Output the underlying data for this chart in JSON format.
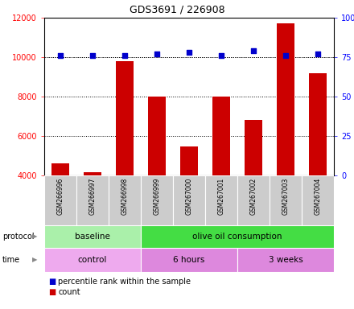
{
  "title": "GDS3691 / 226908",
  "samples": [
    "GSM266996",
    "GSM266997",
    "GSM266998",
    "GSM266999",
    "GSM267000",
    "GSM267001",
    "GSM267002",
    "GSM267003",
    "GSM267004"
  ],
  "bar_values": [
    4600,
    4150,
    9800,
    8000,
    5450,
    8000,
    6800,
    11700,
    9200
  ],
  "percentile_values": [
    76,
    76,
    76,
    77,
    78,
    76,
    79,
    76,
    77
  ],
  "bar_color": "#cc0000",
  "dot_color": "#0000cc",
  "ylim_left": [
    4000,
    12000
  ],
  "ylim_right": [
    0,
    100
  ],
  "yticks_left": [
    4000,
    6000,
    8000,
    10000,
    12000
  ],
  "yticks_right": [
    0,
    25,
    50,
    75,
    100
  ],
  "dotted_line_values": [
    6000,
    8000,
    10000
  ],
  "protocol_groups": [
    {
      "label": "baseline",
      "start": 0,
      "end": 3,
      "color": "#aaf0aa"
    },
    {
      "label": "olive oil consumption",
      "start": 3,
      "end": 9,
      "color": "#44dd44"
    }
  ],
  "time_groups": [
    {
      "label": "control",
      "start": 0,
      "end": 3,
      "color": "#eeaaee"
    },
    {
      "label": "6 hours",
      "start": 3,
      "end": 6,
      "color": "#dd88dd"
    },
    {
      "label": "3 weeks",
      "start": 6,
      "end": 9,
      "color": "#dd88dd"
    }
  ],
  "legend_count_color": "#cc0000",
  "legend_dot_color": "#0000cc"
}
